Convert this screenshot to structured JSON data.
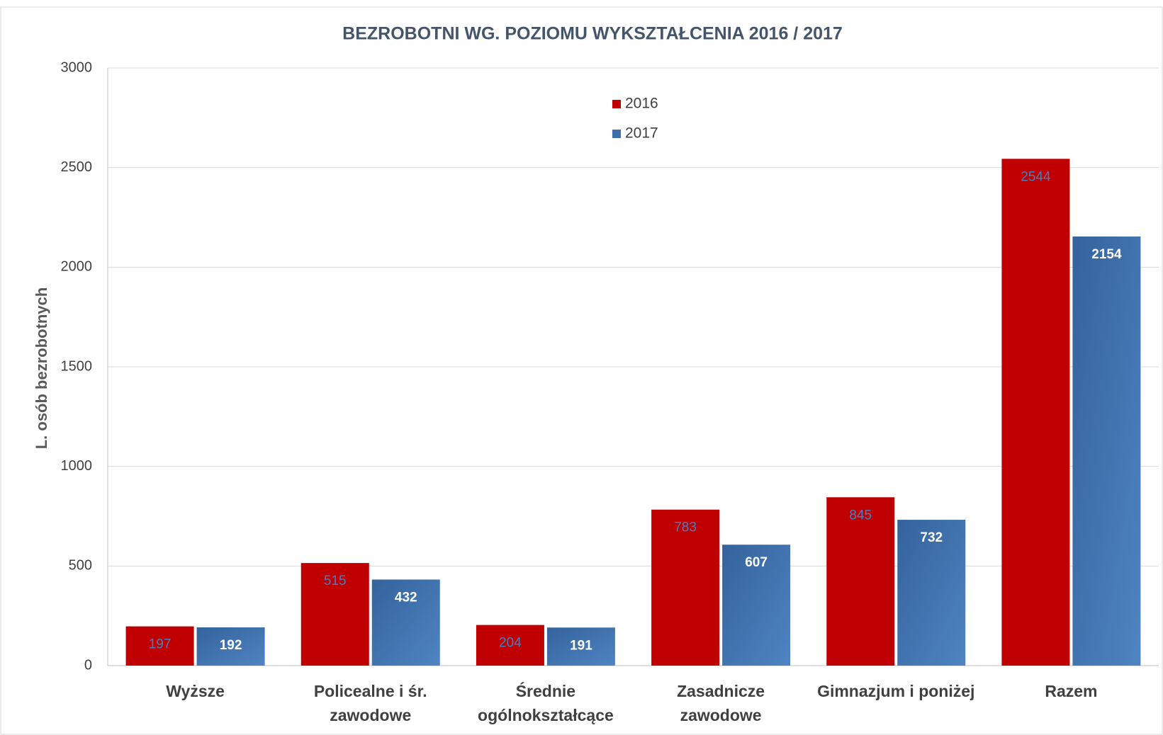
{
  "chart_data": {
    "type": "bar",
    "title": "BEZROBOTNI WG. POZIOMU WYKSZTAŁCENIA 2016 / 2017",
    "y_label": "L. osób bezrobotnych",
    "categories": [
      "Wyższe",
      "Policealne i śr.\nzawodowe",
      "Średnie\nogólnokształcące",
      "Zasadnicze\nzawodowe",
      "Gimnazjum i poniżej",
      "Razem"
    ],
    "series": [
      {
        "name": "2016",
        "color": "#c00000",
        "label_color": "#4a7ebb",
        "values": [
          197,
          515,
          204,
          783,
          845,
          2544
        ]
      },
      {
        "name": "2017",
        "color": "#3d6ea8",
        "label_color": "#ffffff",
        "values": [
          192,
          432,
          191,
          607,
          732,
          2154
        ]
      }
    ],
    "ylim": [
      0,
      3000
    ],
    "yticks": [
      0,
      500,
      1000,
      1500,
      2000,
      2500,
      3000
    ],
    "grid": true,
    "legend": "top"
  }
}
